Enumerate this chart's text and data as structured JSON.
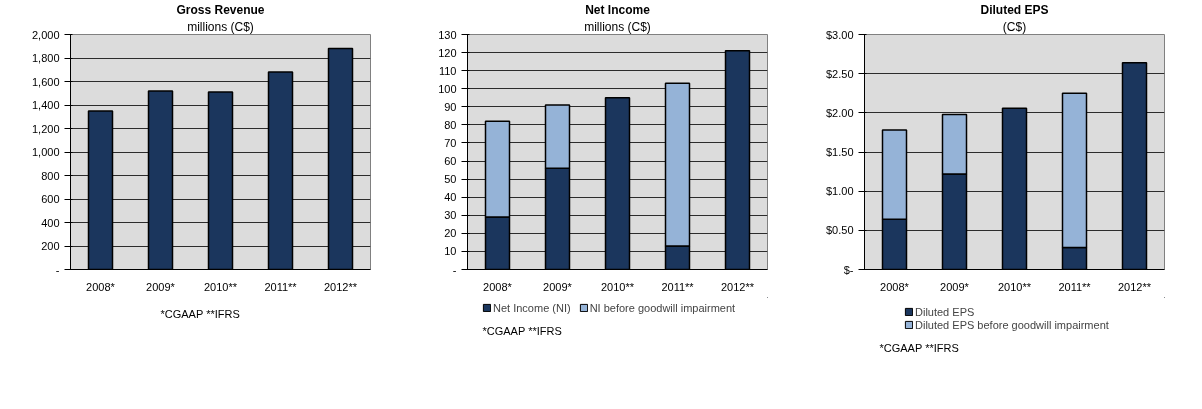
{
  "chart_data": [
    {
      "type": "bar",
      "title": "Gross Revenue",
      "subtitle": "millions (C$)",
      "categories": [
        "2008*",
        "2009*",
        "2010**",
        "2011**",
        "2012**"
      ],
      "series": [
        {
          "color": "#1b365d",
          "values": [
            1350,
            1520,
            1510,
            1680,
            1880
          ]
        }
      ],
      "ylim": [
        0,
        2000
      ],
      "yticks": [
        {
          "value": 0,
          "label": "-"
        },
        200,
        400,
        600,
        800,
        {
          "value": 1000,
          "label": "1,000"
        },
        {
          "value": 1200,
          "label": "1,200"
        },
        {
          "value": 1400,
          "label": "1,400"
        },
        {
          "value": 1600,
          "label": "1,600"
        },
        {
          "value": 1800,
          "label": "1,800"
        },
        {
          "value": 2000,
          "label": "2,000"
        }
      ],
      "grid": "y",
      "annotations": [
        "*CGAAP  **IFRS"
      ]
    },
    {
      "type": "bar",
      "title": "Net Income",
      "subtitle": "millions (C$)",
      "categories": [
        "2008*",
        "2009*",
        "2010**",
        "2011**",
        "2012**"
      ],
      "stacked": true,
      "series": [
        {
          "name": "Net Income (NI)",
          "color": "#1b365d",
          "values": [
            29,
            56,
            95,
            13,
            121
          ]
        },
        {
          "name": "NI before goodwill impairment",
          "color": "#95b3d7",
          "values": [
            53,
            35,
            null,
            90,
            null
          ]
        }
      ],
      "ylim": [
        0,
        130
      ],
      "yticks": [
        {
          "value": 0,
          "label": "-"
        },
        10,
        20,
        30,
        40,
        50,
        60,
        70,
        80,
        90,
        100,
        110,
        120,
        130
      ],
      "grid": "y",
      "legend": "bottom",
      "annotations": [
        "*CGAAP  **IFRS"
      ]
    },
    {
      "type": "bar",
      "title": "Diluted EPS",
      "subtitle": "(C$)",
      "categories": [
        "2008*",
        "2009*",
        "2010**",
        "2011**",
        "2012**"
      ],
      "stacked": true,
      "series": [
        {
          "name": "Diluted EPS",
          "color": "#1b365d",
          "values": [
            0.64,
            1.22,
            2.06,
            0.28,
            2.64
          ]
        },
        {
          "name": "Diluted EPS before goodwill impairment",
          "color": "#95b3d7",
          "values": [
            1.14,
            0.76,
            null,
            1.97,
            null
          ]
        }
      ],
      "ylim": [
        0,
        3
      ],
      "yticks": [
        {
          "value": 0,
          "label": "$-"
        },
        {
          "value": 0.5,
          "label": "$0.50"
        },
        {
          "value": 1,
          "label": "$1.00"
        },
        {
          "value": 1.5,
          "label": "$1.50"
        },
        {
          "value": 2,
          "label": "$2.00"
        },
        {
          "value": 2.5,
          "label": "$2.50"
        },
        {
          "value": 3,
          "label": "$3.00"
        }
      ],
      "grid": "y",
      "legend": "bottom",
      "annotations": [
        "*CGAAP  **IFRS"
      ]
    }
  ]
}
